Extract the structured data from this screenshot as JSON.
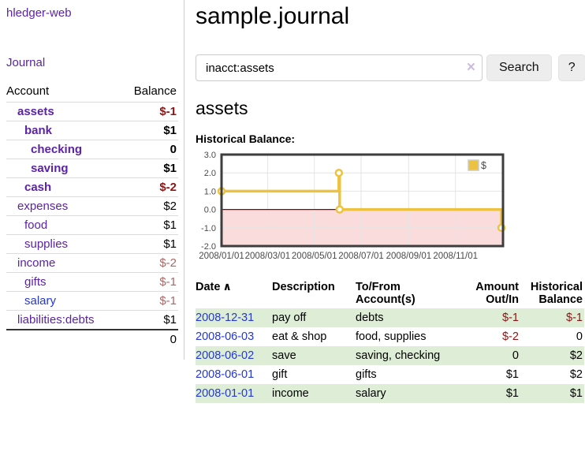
{
  "app": {
    "brand": "hledger-web",
    "nav": {
      "journal": "Journal"
    }
  },
  "sidebar": {
    "header": {
      "account": "Account",
      "balance": "Balance"
    },
    "accounts": [
      {
        "name": "assets",
        "balance": "$-1"
      },
      {
        "name": "bank",
        "balance": "$1"
      },
      {
        "name": "checking",
        "balance": "0"
      },
      {
        "name": "saving",
        "balance": "$1"
      },
      {
        "name": "cash",
        "balance": "$-2"
      },
      {
        "name": "expenses",
        "balance": "$2"
      },
      {
        "name": "food",
        "balance": "$1"
      },
      {
        "name": "supplies",
        "balance": "$1"
      },
      {
        "name": "income",
        "balance": "$-2"
      },
      {
        "name": "gifts",
        "balance": "$-1"
      },
      {
        "name": "salary",
        "balance": "$-1"
      },
      {
        "name": "liabilities:debts",
        "balance": "$1"
      }
    ],
    "total": "0"
  },
  "main": {
    "title": "sample.journal",
    "search": {
      "value": "inacct:assets",
      "clear_icon": "×",
      "search_button": "Search",
      "help_button": "?"
    },
    "account_heading": "assets",
    "chart_heading": "Historical Balance:"
  },
  "chart_data": {
    "type": "line",
    "step": true,
    "title": "Historical Balance:",
    "series": [
      {
        "name": "$",
        "color": "#edc240",
        "points": [
          [
            "2008-01-01",
            1
          ],
          [
            "2008-06-02",
            2
          ],
          [
            "2008-06-03",
            0
          ],
          [
            "2008-12-31",
            -1
          ]
        ]
      }
    ],
    "xrange": [
      "2008-01-01",
      "2009-01-02"
    ],
    "ylim": [
      -2,
      3
    ],
    "yticks": [
      3,
      2,
      1,
      0,
      -1,
      -2
    ],
    "ytick_labels": [
      "3.0",
      "2.0",
      "1.0",
      "0.0",
      "-1.0",
      "-2.0"
    ],
    "xticks": [
      "2008-01-01",
      "2008-03-01",
      "2008-05-01",
      "2008-07-01",
      "2008-09-01",
      "2008-11-01"
    ],
    "xtick_labels": [
      "2008/01/01",
      "2008/03/01",
      "2008/05/01",
      "2008/07/01",
      "2008/09/01",
      "2008/11/01"
    ],
    "legend_position": "top-right",
    "grid": true,
    "colors": {
      "negative_region_fill": "#fbdcdc",
      "zero_line": "#8b0000",
      "border": "#3d3d3d",
      "grid": "#e4e4e4",
      "tick_text": "#4a4a4a",
      "legend_box_border": "#cccccc"
    }
  },
  "register": {
    "columns": [
      "Date",
      "Description",
      "To/From Account(s)",
      "Amount Out/In",
      "Historical Balance"
    ],
    "sort_indicator": "∧",
    "rows": [
      {
        "date": "2008-12-31",
        "description": "pay off",
        "accounts": "debts",
        "amount": "$-1",
        "balance": "$-1"
      },
      {
        "date": "2008-06-03",
        "description": "eat & shop",
        "accounts": "food, supplies",
        "amount": "$-2",
        "balance": "0"
      },
      {
        "date": "2008-06-02",
        "description": "save",
        "accounts": "saving, checking",
        "amount": "0",
        "balance": "$2"
      },
      {
        "date": "2008-06-01",
        "description": "gift",
        "accounts": "gifts",
        "amount": "$1",
        "balance": "$2"
      },
      {
        "date": "2008-01-01",
        "description": "income",
        "accounts": "salary",
        "amount": "$1",
        "balance": "$1"
      }
    ]
  }
}
